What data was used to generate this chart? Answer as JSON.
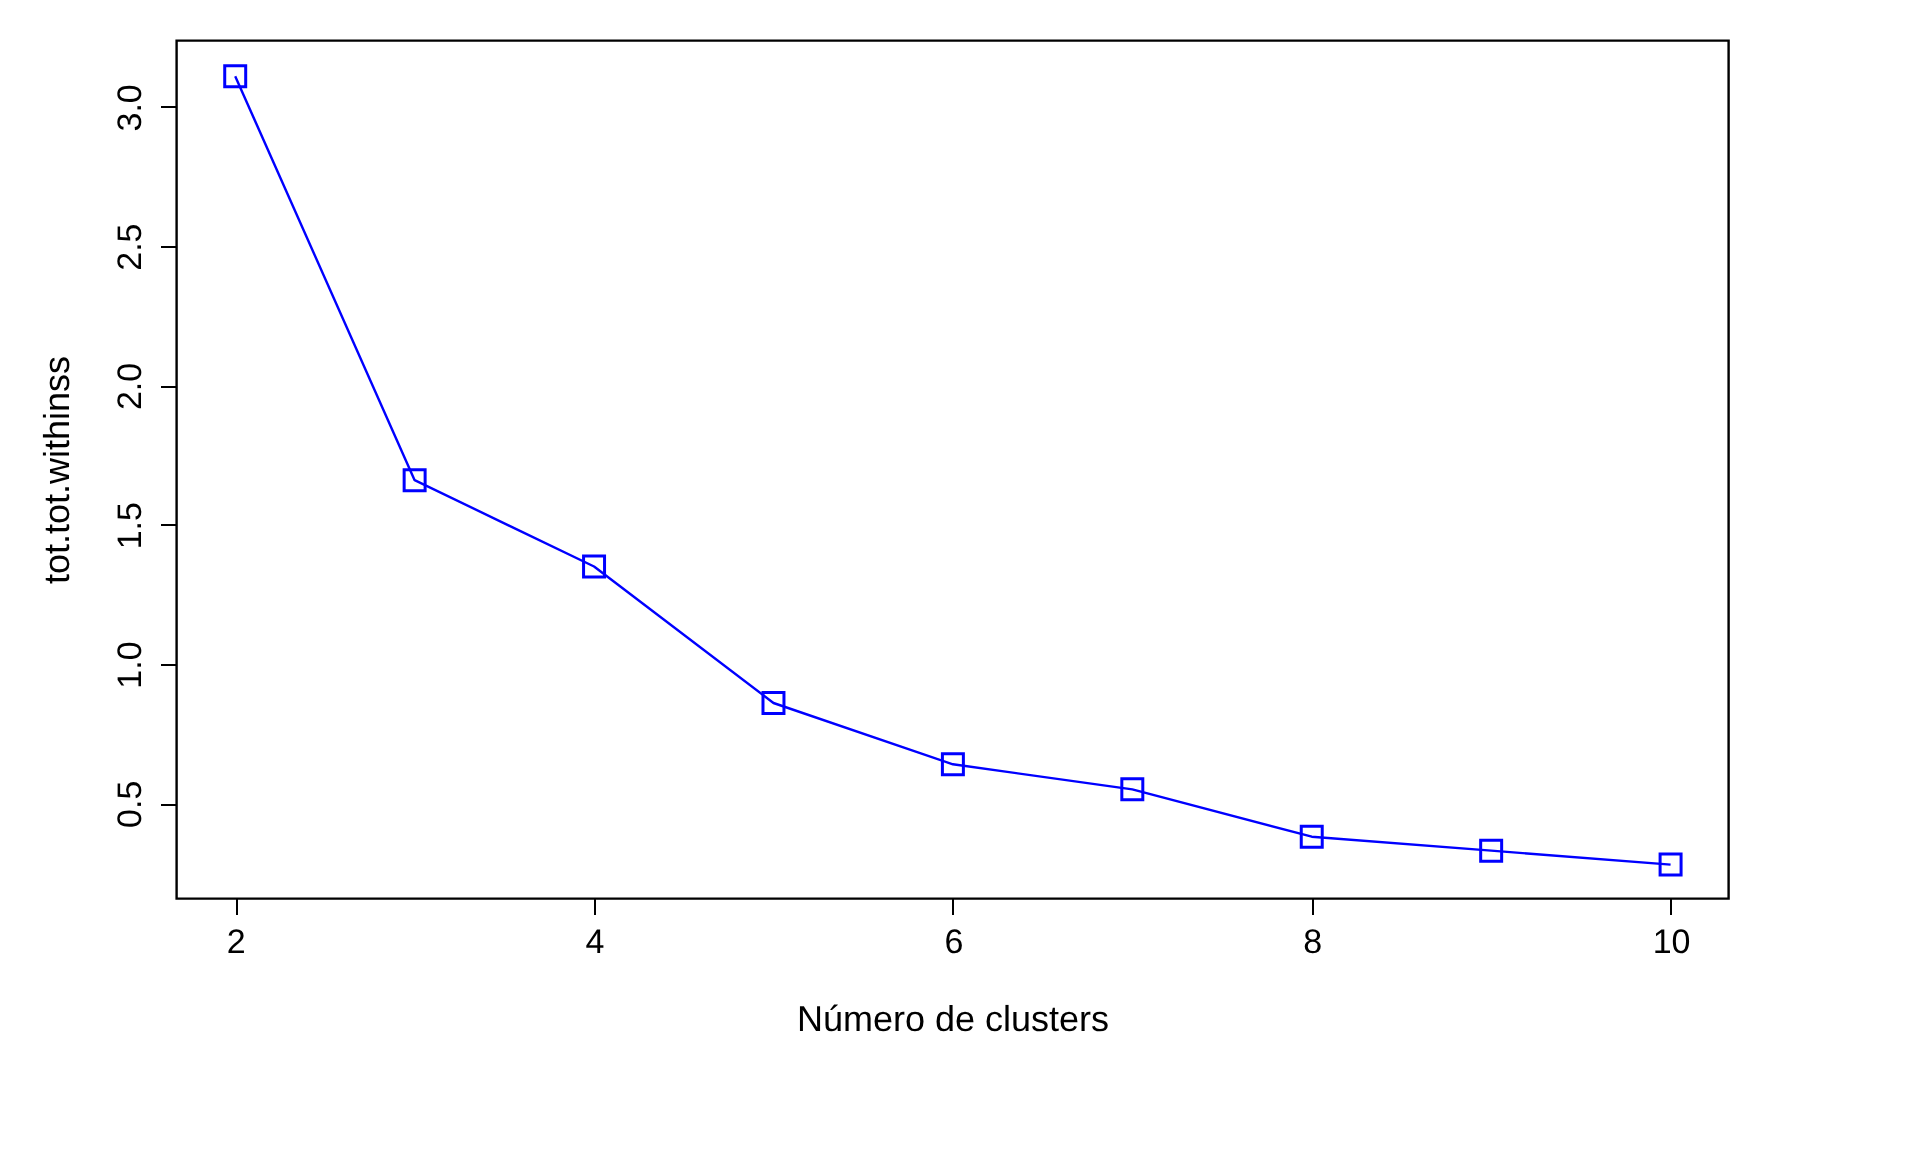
{
  "chart_data": {
    "type": "line",
    "xlabel": "Número de clusters",
    "ylabel": "tot.tot.withinss",
    "x": [
      2,
      3,
      4,
      5,
      6,
      7,
      8,
      9,
      10
    ],
    "series": [
      {
        "color": "#0000ff",
        "values": [
          3.11,
          1.66,
          1.35,
          0.86,
          0.64,
          0.55,
          0.38,
          0.33,
          0.28
        ]
      }
    ],
    "xlim": [
      1.67,
      10.32
    ],
    "ylim": [
      0.16,
      3.24
    ],
    "xticks": [
      2,
      4,
      6,
      8,
      10
    ],
    "yticks": [
      {
        "value": 0.5,
        "label": "0.5"
      },
      {
        "value": 1.0,
        "label": "1.0"
      },
      {
        "value": 1.5,
        "label": "1.5"
      },
      {
        "value": 2.0,
        "label": "2.0"
      },
      {
        "value": 2.5,
        "label": "2.5"
      },
      {
        "value": 3.0,
        "label": "3.0"
      }
    ],
    "marker": "square",
    "line_style": "solid",
    "grid": false
  }
}
